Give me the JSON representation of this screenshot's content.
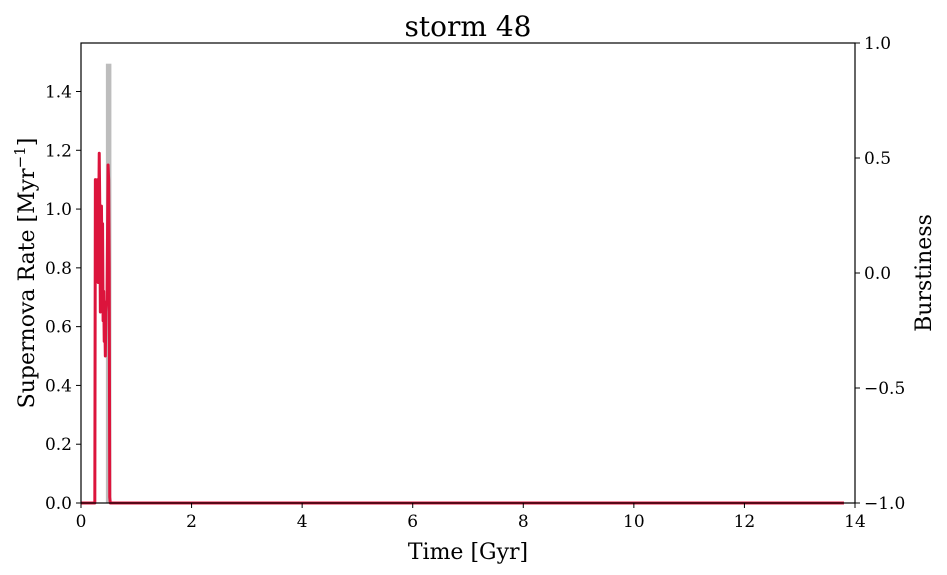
{
  "chart_data": {
    "type": "line",
    "title": "storm 48",
    "xlabel": "Time [Gyr]",
    "ylabel": "Supernova Rate [Myr",
    "ylabel_sup": "−1",
    "ylabel_suffix": "]",
    "y2label": "Burstiness",
    "xlim": [
      0,
      14
    ],
    "ylim": [
      0,
      1.565
    ],
    "y2lim": [
      -1.0,
      1.0
    ],
    "x_ticks": [
      0,
      2,
      4,
      6,
      8,
      10,
      12,
      14
    ],
    "x_tick_labels": [
      "0",
      "2",
      "4",
      "6",
      "8",
      "10",
      "12",
      "14"
    ],
    "y_ticks": [
      0.0,
      0.2,
      0.4,
      0.6,
      0.8,
      1.0,
      1.2,
      1.4
    ],
    "y_tick_labels": [
      "0.0",
      "0.2",
      "0.4",
      "0.6",
      "0.8",
      "1.0",
      "1.2",
      "1.4"
    ],
    "y2_ticks": [
      -1.0,
      -0.5,
      0.0,
      0.5,
      1.0
    ],
    "y2_tick_labels": [
      "−1.0",
      "−0.5",
      "0.0",
      "0.5",
      "1.0"
    ],
    "grid": false,
    "series": [
      {
        "axis": "right",
        "style": "bar",
        "color": "#bdbdbd",
        "x": [
          0.5
        ],
        "width": 0.1,
        "values": [
          0.91
        ]
      },
      {
        "axis": "left",
        "style": "line",
        "color": "#dc143c",
        "x": [
          0.0,
          0.25,
          0.26,
          0.28,
          0.3,
          0.31,
          0.33,
          0.34,
          0.35,
          0.36,
          0.37,
          0.38,
          0.39,
          0.4,
          0.41,
          0.42,
          0.43,
          0.44,
          0.45,
          0.46,
          0.47,
          0.48,
          0.49,
          0.5,
          0.51,
          0.52,
          0.53,
          0.55,
          13.8
        ],
        "values": [
          0.0,
          0.0,
          1.1,
          1.02,
          1.1,
          0.75,
          1.19,
          1.0,
          0.65,
          0.9,
          1.01,
          0.8,
          0.95,
          0.62,
          0.72,
          0.55,
          0.63,
          0.5,
          0.65,
          0.68,
          0.69,
          0.92,
          1.15,
          1.1,
          0.8,
          0.02,
          0.0,
          0.0,
          0.0
        ]
      }
    ]
  }
}
